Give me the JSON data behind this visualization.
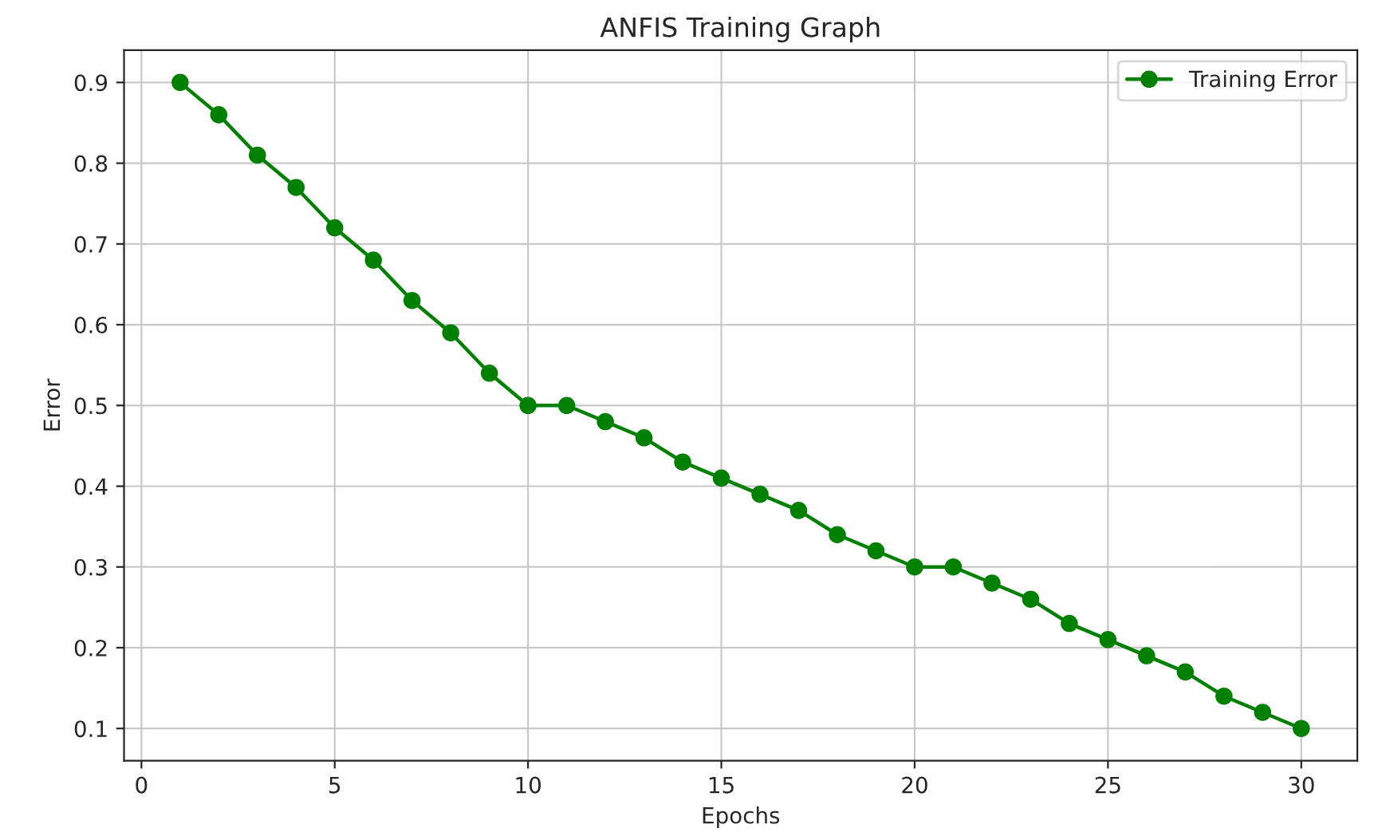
{
  "chart_data": {
    "type": "line",
    "title": "ANFIS Training Graph",
    "xlabel": "Epochs",
    "ylabel": "Error",
    "x": [
      1,
      2,
      3,
      4,
      5,
      6,
      7,
      8,
      9,
      10,
      11,
      12,
      13,
      14,
      15,
      16,
      17,
      18,
      19,
      20,
      21,
      22,
      23,
      24,
      25,
      26,
      27,
      28,
      29,
      30
    ],
    "series": [
      {
        "name": "Training Error",
        "color": "#008000",
        "values": [
          0.9,
          0.86,
          0.81,
          0.77,
          0.72,
          0.68,
          0.63,
          0.59,
          0.54,
          0.5,
          0.5,
          0.48,
          0.46,
          0.43,
          0.41,
          0.39,
          0.37,
          0.34,
          0.32,
          0.3,
          0.3,
          0.28,
          0.26,
          0.23,
          0.21,
          0.19,
          0.17,
          0.14,
          0.12,
          0.1
        ]
      }
    ],
    "xlim": [
      -0.45,
      31.45
    ],
    "ylim": [
      0.06,
      0.94
    ],
    "xticks": [
      0,
      5,
      10,
      15,
      20,
      25,
      30
    ],
    "yticks": [
      0.1,
      0.2,
      0.3,
      0.4,
      0.5,
      0.6,
      0.7,
      0.8,
      0.9
    ],
    "grid": true,
    "legend": "top right",
    "marker": "circle",
    "line_style": "solid"
  }
}
